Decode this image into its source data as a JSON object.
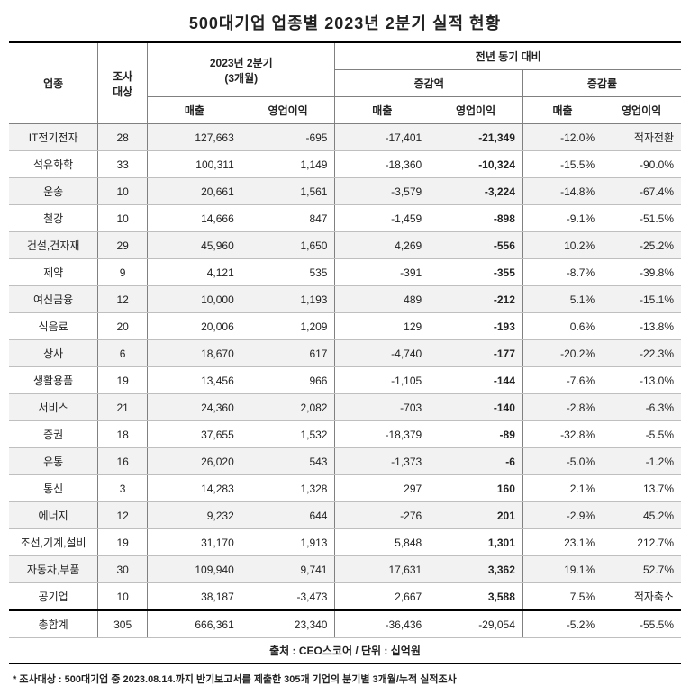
{
  "title": "500대기업 업종별 2023년 2분기 실적 현황",
  "header": {
    "industry": "업종",
    "count": "조사\n대상",
    "q2_group": "2023년 2분기\n(3개월)",
    "yoy_group": "전년 동기 대비",
    "change_amt": "증감액",
    "change_rate": "증감률",
    "revenue": "매출",
    "profit": "영업이익"
  },
  "rows": [
    {
      "label": "IT전기전자",
      "count": "28",
      "rev": "127,663",
      "prof": "-695",
      "drev": "-17,401",
      "dprof": "-21,349",
      "rrev": "-12.0%",
      "rprof": "적자전환"
    },
    {
      "label": "석유화학",
      "count": "33",
      "rev": "100,311",
      "prof": "1,149",
      "drev": "-18,360",
      "dprof": "-10,324",
      "rrev": "-15.5%",
      "rprof": "-90.0%"
    },
    {
      "label": "운송",
      "count": "10",
      "rev": "20,661",
      "prof": "1,561",
      "drev": "-3,579",
      "dprof": "-3,224",
      "rrev": "-14.8%",
      "rprof": "-67.4%"
    },
    {
      "label": "철강",
      "count": "10",
      "rev": "14,666",
      "prof": "847",
      "drev": "-1,459",
      "dprof": "-898",
      "rrev": "-9.1%",
      "rprof": "-51.5%"
    },
    {
      "label": "건설,건자재",
      "count": "29",
      "rev": "45,960",
      "prof": "1,650",
      "drev": "4,269",
      "dprof": "-556",
      "rrev": "10.2%",
      "rprof": "-25.2%"
    },
    {
      "label": "제약",
      "count": "9",
      "rev": "4,121",
      "prof": "535",
      "drev": "-391",
      "dprof": "-355",
      "rrev": "-8.7%",
      "rprof": "-39.8%"
    },
    {
      "label": "여신금융",
      "count": "12",
      "rev": "10,000",
      "prof": "1,193",
      "drev": "489",
      "dprof": "-212",
      "rrev": "5.1%",
      "rprof": "-15.1%"
    },
    {
      "label": "식음료",
      "count": "20",
      "rev": "20,006",
      "prof": "1,209",
      "drev": "129",
      "dprof": "-193",
      "rrev": "0.6%",
      "rprof": "-13.8%"
    },
    {
      "label": "상사",
      "count": "6",
      "rev": "18,670",
      "prof": "617",
      "drev": "-4,740",
      "dprof": "-177",
      "rrev": "-20.2%",
      "rprof": "-22.3%"
    },
    {
      "label": "생활용품",
      "count": "19",
      "rev": "13,456",
      "prof": "966",
      "drev": "-1,105",
      "dprof": "-144",
      "rrev": "-7.6%",
      "rprof": "-13.0%"
    },
    {
      "label": "서비스",
      "count": "21",
      "rev": "24,360",
      "prof": "2,082",
      "drev": "-703",
      "dprof": "-140",
      "rrev": "-2.8%",
      "rprof": "-6.3%"
    },
    {
      "label": "증권",
      "count": "18",
      "rev": "37,655",
      "prof": "1,532",
      "drev": "-18,379",
      "dprof": "-89",
      "rrev": "-32.8%",
      "rprof": "-5.5%"
    },
    {
      "label": "유통",
      "count": "16",
      "rev": "26,020",
      "prof": "543",
      "drev": "-1,373",
      "dprof": "-6",
      "rrev": "-5.0%",
      "rprof": "-1.2%"
    },
    {
      "label": "통신",
      "count": "3",
      "rev": "14,283",
      "prof": "1,328",
      "drev": "297",
      "dprof": "160",
      "rrev": "2.1%",
      "rprof": "13.7%"
    },
    {
      "label": "에너지",
      "count": "12",
      "rev": "9,232",
      "prof": "644",
      "drev": "-276",
      "dprof": "201",
      "rrev": "-2.9%",
      "rprof": "45.2%"
    },
    {
      "label": "조선,기계,설비",
      "count": "19",
      "rev": "31,170",
      "prof": "1,913",
      "drev": "5,848",
      "dprof": "1,301",
      "rrev": "23.1%",
      "rprof": "212.7%"
    },
    {
      "label": "자동차,부품",
      "count": "30",
      "rev": "109,940",
      "prof": "9,741",
      "drev": "17,631",
      "dprof": "3,362",
      "rrev": "19.1%",
      "rprof": "52.7%"
    },
    {
      "label": "공기업",
      "count": "10",
      "rev": "38,187",
      "prof": "-3,473",
      "drev": "2,667",
      "dprof": "3,588",
      "rrev": "7.5%",
      "rprof": "적자축소"
    }
  ],
  "total": {
    "label": "총합계",
    "count": "305",
    "rev": "666,361",
    "prof": "23,340",
    "drev": "-36,436",
    "dprof": "-29,054",
    "rrev": "-5.2%",
    "rprof": "-55.5%"
  },
  "source": "출처 : CEO스코어 / 단위 : 십억원",
  "note": "* 조사대상 : 500대기업 중 2023.08.14.까지 반기보고서를 제출한 305개 기업의 분기별 3개월/누적 실적조사",
  "styling": {
    "title_fontsize": 18,
    "body_fontsize": 12,
    "row_odd_bg": "#f2f2f2",
    "row_even_bg": "#ffffff",
    "border_color": "#bfbfbf",
    "heavy_border_color": "#000000"
  }
}
